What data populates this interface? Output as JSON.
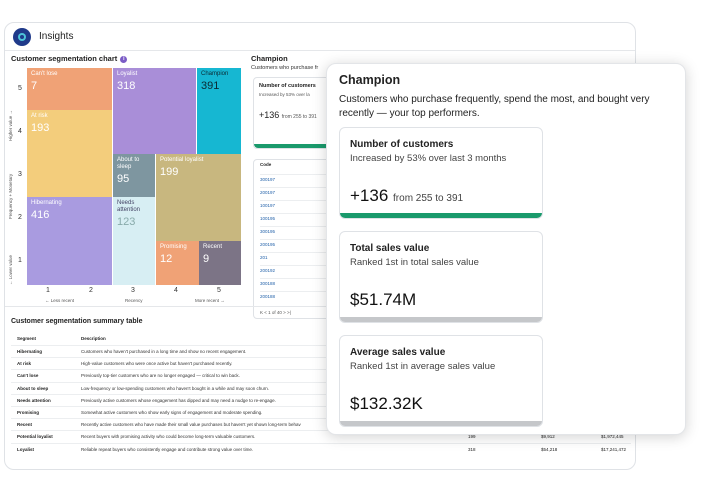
{
  "app": {
    "title": "Insights"
  },
  "chart": {
    "title": "Customer segmentation chart",
    "y_axis_label": "Frequency + Monetary",
    "y_high_label": "Higher value →",
    "y_low_label": "← Lower value",
    "y_ticks": [
      "5",
      "4",
      "3",
      "2",
      "1"
    ],
    "x_ticks": [
      "1",
      "2",
      "3",
      "4",
      "5"
    ],
    "x_left_label": "← Less recent",
    "x_axis_label": "Recency",
    "x_right_label": "More recent →"
  },
  "chart_data": {
    "type": "treemap",
    "title": "Customer segmentation chart",
    "xlabel": "Recency",
    "ylabel": "Frequency + Monetary",
    "segments": [
      {
        "name": "Can't lose",
        "value": 7,
        "color": "#f0a276"
      },
      {
        "name": "At risk",
        "value": 193,
        "color": "#f3cd7c"
      },
      {
        "name": "Hibernating",
        "value": 416,
        "color": "#a99be0"
      },
      {
        "name": "Loyalist",
        "value": 318,
        "color": "#a98ed8"
      },
      {
        "name": "About to sleep",
        "value": 95,
        "color": "#7e96a0"
      },
      {
        "name": "Needs attention",
        "value": 123,
        "color": "#d7eef3"
      },
      {
        "name": "Champion",
        "value": 391,
        "color": "#16b7d2"
      },
      {
        "name": "Potential loyalist",
        "value": 199,
        "color": "#c8b77f"
      },
      {
        "name": "Promising",
        "value": 12,
        "color": "#f0a276"
      },
      {
        "name": "Recent",
        "value": 9,
        "color": "#7c7486"
      }
    ]
  },
  "middle": {
    "title": "Champion",
    "subtitle": "Customers who purchase fr",
    "card_title": "Number of customers",
    "card_sub": "Increased by 53% over la",
    "card_value": "+136",
    "card_value_sub": "from 255 to 391",
    "codes_header": "Code",
    "codes": [
      "300197",
      "200197",
      "100197",
      "100195",
      "300195",
      "200195",
      "201",
      "200192",
      "300188",
      "200188"
    ],
    "pager": "K  <  1 of 40  >  >|"
  },
  "summary": {
    "title": "Customer segmentation summary table",
    "headers": [
      "Segment",
      "Description",
      "",
      "",
      ""
    ],
    "rows": [
      {
        "seg": "Hibernating",
        "desc": "Customers who haven't purchased in a long time and show no recent engagement.",
        "n": "",
        "avg": "",
        "total": ""
      },
      {
        "seg": "At risk",
        "desc": "High-value customers who were once active but haven't purchased recently.",
        "n": "",
        "avg": "",
        "total": ""
      },
      {
        "seg": "Can't lose",
        "desc": "Previously top-tier customers who are no longer engaged — critical to win back.",
        "n": "",
        "avg": "",
        "total": ""
      },
      {
        "seg": "About to sleep",
        "desc": "Low-frequency or low-spending customers who haven't bought in a while and may soon churn.",
        "n": "",
        "avg": "",
        "total": ""
      },
      {
        "seg": "Needs attention",
        "desc": "Previously active customers whose engagement has dipped and may need a nudge to re-engage.",
        "n": "",
        "avg": "",
        "total": ""
      },
      {
        "seg": "Promising",
        "desc": "Somewhat active customers who show early signs of engagement and moderate spending.",
        "n": "",
        "avg": "",
        "total": ""
      },
      {
        "seg": "Recent",
        "desc": "Recently active customers who have made their small value purchases but haven't yet shown long-term behav",
        "n": "",
        "avg": "",
        "total": ""
      },
      {
        "seg": "Potential loyalist",
        "desc": "Recent buyers with promising activity who could become long-term valuable customers.",
        "n": "199",
        "avg": "$9,912",
        "total": "$1,972,445"
      },
      {
        "seg": "Loyalist",
        "desc": "Reliable repeat buyers who consistently engage and contribute strong value over time.",
        "n": "318",
        "avg": "$54,218",
        "total": "$17,241,472"
      }
    ]
  },
  "panel": {
    "title": "Champion",
    "description": "Customers who purchase frequently, spend the most, and bought very recently — your top performers.",
    "cards": [
      {
        "title": "Number of customers",
        "sub": "Increased by 53% over last 3 months",
        "value": "+136",
        "value_sub": "from 255 to 391",
        "bar_color": "#1a9a6c"
      },
      {
        "title": "Total sales value",
        "sub": "Ranked 1st in total sales value",
        "value": "$51.74M",
        "value_sub": "",
        "bar_color": "#c5c7ca"
      },
      {
        "title": "Average sales value",
        "sub": "Ranked 1st in average sales value",
        "value": "$132.32K",
        "value_sub": "",
        "bar_color": "#c5c7ca"
      }
    ]
  }
}
